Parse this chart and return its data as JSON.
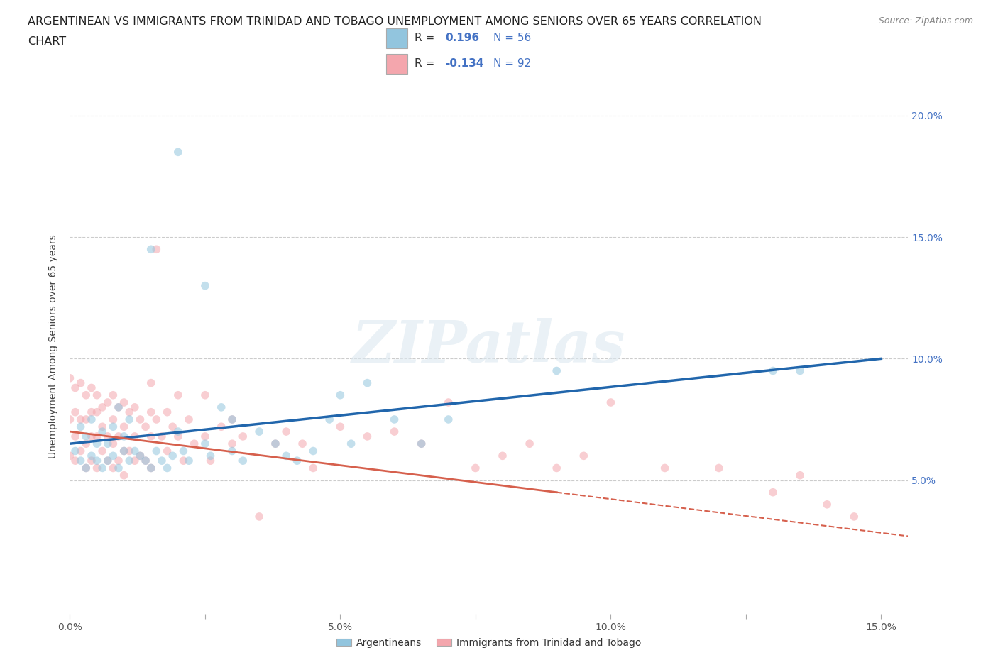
{
  "title_line1": "ARGENTINEAN VS IMMIGRANTS FROM TRINIDAD AND TOBAGO UNEMPLOYMENT AMONG SENIORS OVER 65 YEARS CORRELATION",
  "title_line2": "CHART",
  "source": "Source: ZipAtlas.com",
  "ylabel": "Unemployment Among Seniors over 65 years",
  "xlim": [
    0.0,
    0.155
  ],
  "ylim": [
    -0.005,
    0.215
  ],
  "watermark": "ZIPatlas",
  "blue_color": "#92c5de",
  "pink_color": "#f4a6ad",
  "blue_line_color": "#2166ac",
  "pink_line_color": "#d6604d",
  "legend_val1": "0.196",
  "legend_N1": "56",
  "legend_val2": "-0.134",
  "legend_N2": "92",
  "blue_scatter_x": [
    0.001,
    0.002,
    0.002,
    0.003,
    0.003,
    0.004,
    0.004,
    0.005,
    0.005,
    0.006,
    0.006,
    0.007,
    0.007,
    0.008,
    0.008,
    0.009,
    0.009,
    0.01,
    0.01,
    0.011,
    0.011,
    0.012,
    0.013,
    0.014,
    0.015,
    0.015,
    0.016,
    0.017,
    0.018,
    0.019,
    0.02,
    0.02,
    0.021,
    0.022,
    0.025,
    0.025,
    0.026,
    0.028,
    0.03,
    0.03,
    0.032,
    0.035,
    0.038,
    0.04,
    0.042,
    0.045,
    0.048,
    0.05,
    0.052,
    0.055,
    0.06,
    0.065,
    0.07,
    0.09,
    0.13,
    0.135
  ],
  "blue_scatter_y": [
    0.062,
    0.058,
    0.072,
    0.055,
    0.068,
    0.06,
    0.075,
    0.058,
    0.065,
    0.07,
    0.055,
    0.065,
    0.058,
    0.072,
    0.06,
    0.08,
    0.055,
    0.062,
    0.068,
    0.075,
    0.058,
    0.062,
    0.06,
    0.058,
    0.145,
    0.055,
    0.062,
    0.058,
    0.055,
    0.06,
    0.185,
    0.07,
    0.062,
    0.058,
    0.13,
    0.065,
    0.06,
    0.08,
    0.075,
    0.062,
    0.058,
    0.07,
    0.065,
    0.06,
    0.058,
    0.062,
    0.075,
    0.085,
    0.065,
    0.09,
    0.075,
    0.065,
    0.075,
    0.095,
    0.095,
    0.095
  ],
  "pink_scatter_x": [
    0.0,
    0.0,
    0.0,
    0.001,
    0.001,
    0.001,
    0.001,
    0.002,
    0.002,
    0.002,
    0.003,
    0.003,
    0.003,
    0.003,
    0.004,
    0.004,
    0.004,
    0.004,
    0.005,
    0.005,
    0.005,
    0.005,
    0.006,
    0.006,
    0.006,
    0.007,
    0.007,
    0.007,
    0.008,
    0.008,
    0.008,
    0.008,
    0.009,
    0.009,
    0.009,
    0.01,
    0.01,
    0.01,
    0.01,
    0.011,
    0.011,
    0.012,
    0.012,
    0.012,
    0.013,
    0.013,
    0.014,
    0.014,
    0.015,
    0.015,
    0.015,
    0.015,
    0.016,
    0.016,
    0.017,
    0.018,
    0.018,
    0.019,
    0.02,
    0.02,
    0.021,
    0.022,
    0.023,
    0.025,
    0.025,
    0.026,
    0.028,
    0.03,
    0.03,
    0.032,
    0.035,
    0.038,
    0.04,
    0.043,
    0.045,
    0.05,
    0.055,
    0.06,
    0.065,
    0.07,
    0.075,
    0.08,
    0.085,
    0.09,
    0.095,
    0.1,
    0.11,
    0.12,
    0.13,
    0.135,
    0.14,
    0.145
  ],
  "pink_scatter_y": [
    0.092,
    0.075,
    0.06,
    0.088,
    0.078,
    0.068,
    0.058,
    0.09,
    0.075,
    0.062,
    0.085,
    0.075,
    0.065,
    0.055,
    0.088,
    0.078,
    0.068,
    0.058,
    0.085,
    0.078,
    0.068,
    0.055,
    0.08,
    0.072,
    0.062,
    0.082,
    0.068,
    0.058,
    0.085,
    0.075,
    0.065,
    0.055,
    0.08,
    0.068,
    0.058,
    0.082,
    0.072,
    0.062,
    0.052,
    0.078,
    0.062,
    0.08,
    0.068,
    0.058,
    0.075,
    0.06,
    0.072,
    0.058,
    0.09,
    0.078,
    0.068,
    0.055,
    0.145,
    0.075,
    0.068,
    0.078,
    0.062,
    0.072,
    0.085,
    0.068,
    0.058,
    0.075,
    0.065,
    0.085,
    0.068,
    0.058,
    0.072,
    0.075,
    0.065,
    0.068,
    0.035,
    0.065,
    0.07,
    0.065,
    0.055,
    0.072,
    0.068,
    0.07,
    0.065,
    0.082,
    0.055,
    0.06,
    0.065,
    0.055,
    0.06,
    0.082,
    0.055,
    0.055,
    0.045,
    0.052,
    0.04,
    0.035
  ],
  "grid_color": "#cccccc",
  "background_color": "#ffffff",
  "title_fontsize": 11.5,
  "axis_label_fontsize": 10,
  "tick_label_fontsize": 10,
  "marker_size": 70,
  "marker_alpha": 0.55
}
